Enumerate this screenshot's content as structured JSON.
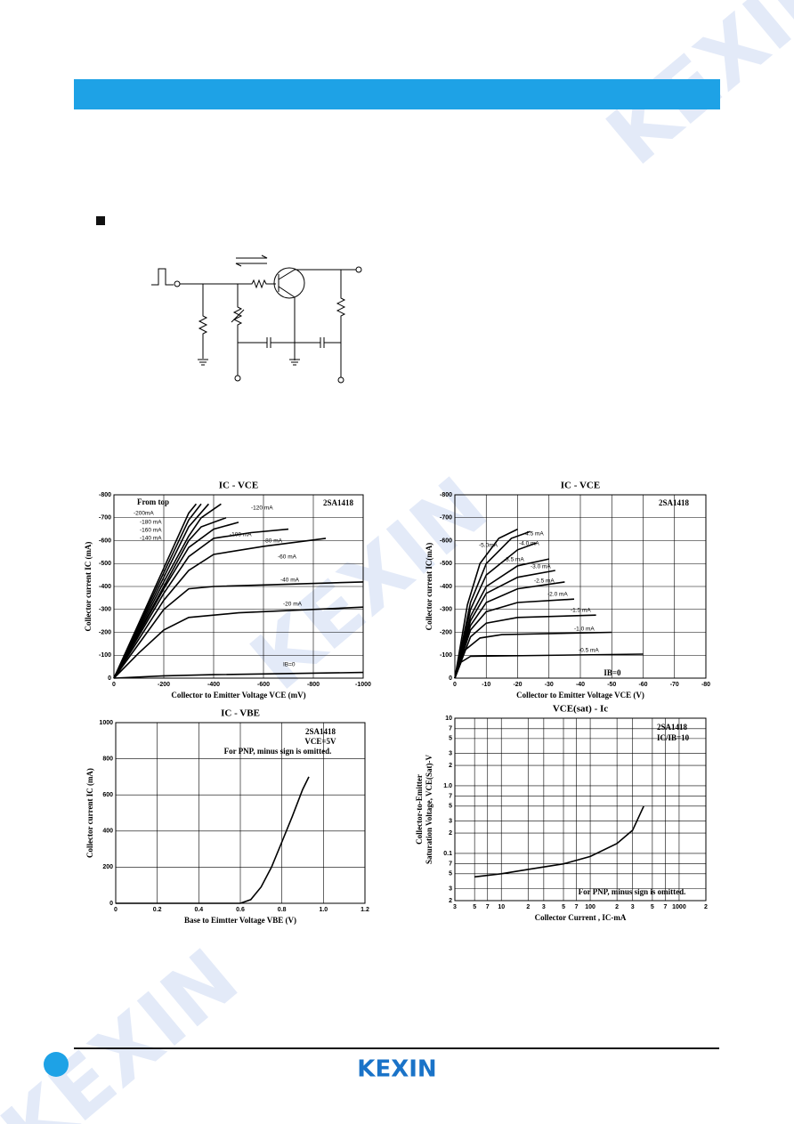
{
  "watermark": "KEXIN",
  "footer": {
    "logo": "KEXIN"
  },
  "chart_data": [
    {
      "type": "line",
      "title": "IC - VCE",
      "x_label": "Collector to Emitter Voltage VCE (mV)",
      "y_label": [
        "Collector current IC (mA)"
      ],
      "color": "#000000",
      "grid": true,
      "xlim": [
        0,
        -1000
      ],
      "ylim": [
        0,
        -800
      ],
      "xticks": [
        0,
        -200,
        -400,
        -600,
        -800,
        -1000
      ],
      "yticks": [
        0,
        -100,
        -200,
        -300,
        -400,
        -500,
        -600,
        -700,
        -800
      ],
      "annotations": [
        "From top",
        "2SA1418"
      ],
      "series": [
        {
          "name": "IB=0",
          "x": [
            0,
            -200,
            -400,
            -1000
          ],
          "values": [
            0,
            -10,
            -15,
            -25
          ]
        },
        {
          "name": "-20 mA",
          "x": [
            0,
            -100,
            -200,
            -300,
            -500,
            -1000
          ],
          "values": [
            0,
            -110,
            -210,
            -265,
            -285,
            -310
          ]
        },
        {
          "name": "-40 mA",
          "x": [
            0,
            -100,
            -200,
            -300,
            -400,
            -1000
          ],
          "values": [
            0,
            -150,
            -300,
            -390,
            -400,
            -420
          ]
        },
        {
          "name": "-60 mA",
          "x": [
            0,
            -100,
            -200,
            -300,
            -400,
            -600,
            -850
          ],
          "values": [
            0,
            -170,
            -340,
            -470,
            -540,
            -575,
            -610
          ]
        },
        {
          "name": "-80 mA",
          "x": [
            0,
            -100,
            -200,
            -300,
            -400,
            -550,
            -700
          ],
          "values": [
            0,
            -185,
            -370,
            -530,
            -610,
            -635,
            -650
          ]
        },
        {
          "name": "-100 mA",
          "x": [
            0,
            -100,
            -200,
            -300,
            -400,
            -500
          ],
          "values": [
            0,
            -195,
            -390,
            -570,
            -650,
            -680
          ]
        },
        {
          "name": "-120 mA",
          "x": [
            0,
            -100,
            -200,
            -300,
            -350,
            -450
          ],
          "values": [
            0,
            -200,
            -400,
            -600,
            -660,
            -700
          ]
        },
        {
          "name": "-140 mA",
          "x": [
            0,
            -200,
            -300,
            -350,
            -430
          ],
          "values": [
            0,
            -420,
            -620,
            -700,
            -760
          ]
        },
        {
          "name": "-160 mA",
          "x": [
            0,
            -200,
            -300,
            -380
          ],
          "values": [
            0,
            -440,
            -660,
            -760
          ]
        },
        {
          "name": "-180 mA",
          "x": [
            0,
            -200,
            -300,
            -350
          ],
          "values": [
            0,
            -460,
            -690,
            -760
          ]
        },
        {
          "name": "-200mA",
          "x": [
            0,
            -200,
            -300,
            -330
          ],
          "values": [
            0,
            -480,
            -720,
            -760
          ]
        }
      ]
    },
    {
      "type": "line",
      "title": "IC - VCE",
      "x_label": "Collector to Emitter Voltage VCE (V)",
      "y_label": [
        "Collector current IC(mA)"
      ],
      "color": "#000000",
      "grid": true,
      "xlim": [
        0,
        -80
      ],
      "ylim": [
        0,
        -800
      ],
      "xticks": [
        0,
        -10,
        -20,
        -30,
        -40,
        -50,
        -60,
        -70,
        -80
      ],
      "yticks": [
        0,
        -100,
        -200,
        -300,
        -400,
        -500,
        -600,
        -700,
        -800
      ],
      "annotations": [
        "2SA1418",
        "IB=0"
      ],
      "series": [
        {
          "name": "-0.5 mA",
          "x": [
            0,
            -2,
            -5,
            -60
          ],
          "values": [
            0,
            -70,
            -95,
            -105
          ]
        },
        {
          "name": "-1.0 mA",
          "x": [
            0,
            -3,
            -8,
            -15,
            -50
          ],
          "values": [
            0,
            -120,
            -175,
            -190,
            -200
          ]
        },
        {
          "name": "-1.5 mA",
          "x": [
            0,
            -5,
            -10,
            -20,
            -45
          ],
          "values": [
            0,
            -180,
            -240,
            -265,
            -275
          ]
        },
        {
          "name": "-2.0 mA",
          "x": [
            0,
            -5,
            -10,
            -20,
            -38
          ],
          "values": [
            0,
            -210,
            -290,
            -330,
            -345
          ]
        },
        {
          "name": "-2.5 mA",
          "x": [
            0,
            -5,
            -10,
            -20,
            -35
          ],
          "values": [
            0,
            -230,
            -330,
            -390,
            -420
          ]
        },
        {
          "name": "-3.0 mA",
          "x": [
            0,
            -5,
            -10,
            -20,
            -32
          ],
          "values": [
            0,
            -250,
            -370,
            -440,
            -470
          ]
        },
        {
          "name": "-3.5 mA",
          "x": [
            0,
            -5,
            -10,
            -20,
            -30
          ],
          "values": [
            0,
            -270,
            -400,
            -490,
            -520
          ]
        },
        {
          "name": "-4.0 mA",
          "x": [
            0,
            -5,
            -10,
            -20,
            -26
          ],
          "values": [
            0,
            -300,
            -450,
            -560,
            -590
          ]
        },
        {
          "name": "-4.5 mA",
          "x": [
            0,
            -5,
            -10,
            -18,
            -24
          ],
          "values": [
            0,
            -330,
            -500,
            -610,
            -640
          ]
        },
        {
          "name": "-5.0mA",
          "x": [
            0,
            -4,
            -8,
            -14,
            -20
          ],
          "values": [
            0,
            -320,
            -500,
            -610,
            -650
          ]
        }
      ]
    },
    {
      "type": "line",
      "title": "IC - VBE",
      "x_label": "Base to Eimtter Voltage VBE (V)",
      "y_label": [
        "Collector current  IC (mA)"
      ],
      "color": "#000000",
      "grid": true,
      "xlim": [
        0,
        1.2
      ],
      "ylim": [
        0,
        1000
      ],
      "xticks": [
        0,
        0.2,
        0.4,
        0.6,
        0.8,
        {
          "value": 1,
          "label": "1.0"
        },
        1.2
      ],
      "yticks": [
        0,
        200,
        400,
        600,
        800,
        1000
      ],
      "annotations": [
        "2SA1418",
        "VCE=5V",
        "For PNP, minus sign is omitted."
      ],
      "series": [
        {
          "name": null,
          "x": [
            0,
            0.6,
            0.65,
            0.7,
            0.75,
            0.8,
            0.85,
            0.9,
            0.93
          ],
          "values": [
            0,
            0,
            20,
            90,
            200,
            340,
            480,
            630,
            700
          ]
        }
      ]
    },
    {
      "type": "line",
      "title": "VCE(sat) - Ic",
      "x_label": "Collector Current , IC-mA",
      "y_label": [
        "Collector-to-Emitter",
        "Saturation Voltage, VCE(Sat)-V"
      ],
      "color": "#000000",
      "grid": true,
      "log_x": true,
      "log_y": true,
      "xlim": [
        3,
        2000
      ],
      "ylim": [
        0.02,
        10
      ],
      "xticks": [
        3,
        5,
        7,
        10,
        {
          "value": 20,
          "label": "2"
        },
        {
          "value": 30,
          "label": "3"
        },
        {
          "value": 50,
          "label": "5"
        },
        {
          "value": 70,
          "label": "7"
        },
        100,
        {
          "value": 200,
          "label": "2"
        },
        {
          "value": 300,
          "label": "3"
        },
        {
          "value": 500,
          "label": "5"
        },
        {
          "value": 700,
          "label": "7"
        },
        1000,
        {
          "value": 2000,
          "label": "2"
        }
      ],
      "yticks": [
        {
          "value": 0.02,
          "label": "2"
        },
        {
          "value": 0.03,
          "label": "3"
        },
        {
          "value": 0.05,
          "label": "5"
        },
        {
          "value": 0.07,
          "label": "7"
        },
        0.1,
        {
          "value": 0.2,
          "label": "2"
        },
        {
          "value": 0.3,
          "label": "3"
        },
        {
          "value": 0.5,
          "label": "5"
        },
        {
          "value": 0.7,
          "label": "7"
        },
        {
          "value": 1,
          "label": "1.0"
        },
        2,
        3,
        5,
        7,
        10
      ],
      "annotations": [
        "2SA1418",
        "IC/IB=10",
        "For PNP, minus sign is omitted."
      ],
      "series": [
        {
          "name": null,
          "x": [
            5,
            10,
            20,
            50,
            100,
            200,
            300,
            400
          ],
          "values": [
            0.045,
            0.05,
            0.058,
            0.07,
            0.09,
            0.14,
            0.22,
            0.5
          ]
        }
      ]
    }
  ]
}
